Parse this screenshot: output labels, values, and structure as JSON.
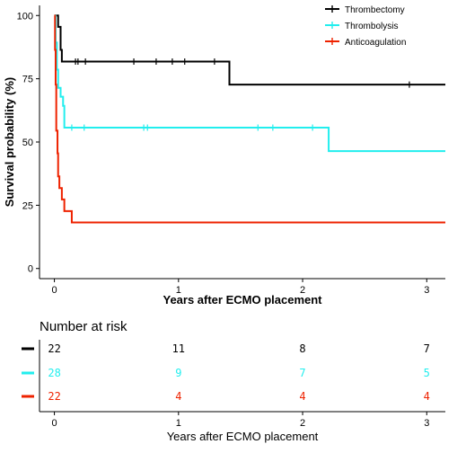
{
  "chart_data": [
    {
      "type": "line",
      "subtype": "kaplan-meier",
      "title": "",
      "xlabel": "Years after ECMO placement",
      "ylabel": "Survival probability (%)",
      "xlim": [
        -0.12,
        3.15
      ],
      "ylim": [
        -4,
        104
      ],
      "xticks": [
        0,
        1,
        2,
        3
      ],
      "yticks": [
        0,
        25,
        50,
        75,
        100
      ],
      "grid": false,
      "legend_position": "top-right",
      "series": [
        {
          "name": "Thrombectomy",
          "color": "#000000",
          "steps": [
            [
              0,
              100
            ],
            [
              0.03,
              95.5
            ],
            [
              0.05,
              86.4
            ],
            [
              0.06,
              81.8
            ],
            [
              1.41,
              81.8
            ],
            [
              1.41,
              72.7
            ],
            [
              3.15,
              72.7
            ]
          ],
          "censor_x": [
            0.17,
            0.19,
            0.25,
            0.64,
            0.82,
            0.95,
            1.05,
            1.29,
            2.86
          ],
          "censor_y": [
            81.8,
            81.8,
            81.8,
            81.8,
            81.8,
            81.8,
            81.8,
            81.8,
            72.7
          ]
        },
        {
          "name": "Thrombolysis",
          "color": "#22eeee",
          "steps": [
            [
              0,
              100
            ],
            [
              0.01,
              89.3
            ],
            [
              0.02,
              78.6
            ],
            [
              0.03,
              71.4
            ],
            [
              0.05,
              67.9
            ],
            [
              0.07,
              64.3
            ],
            [
              0.08,
              55.7
            ],
            [
              2.21,
              55.7
            ],
            [
              2.21,
              46.4
            ],
            [
              3.15,
              46.4
            ]
          ],
          "censor_x": [
            0.14,
            0.24,
            0.72,
            0.75,
            1.64,
            1.76,
            2.08
          ],
          "censor_y": [
            55.7,
            55.7,
            55.7,
            55.7,
            55.7,
            55.7,
            55.7
          ]
        },
        {
          "name": "Anticoagulation",
          "color": "#ee2200",
          "steps": [
            [
              0,
              100
            ],
            [
              0.005,
              86.4
            ],
            [
              0.01,
              72.7
            ],
            [
              0.015,
              54.5
            ],
            [
              0.025,
              45.5
            ],
            [
              0.03,
              36.4
            ],
            [
              0.04,
              31.8
            ],
            [
              0.06,
              27.3
            ],
            [
              0.08,
              22.7
            ],
            [
              0.14,
              22.7
            ],
            [
              0.14,
              18.2
            ],
            [
              3.15,
              18.2
            ]
          ],
          "censor_x": [],
          "censor_y": []
        }
      ]
    },
    {
      "type": "table",
      "title": "Number at risk",
      "xlabel": "Years after ECMO placement",
      "xticks": [
        0,
        1,
        2,
        3
      ],
      "rows": [
        {
          "name": "Thrombectomy",
          "color": "#000000",
          "values": [
            22,
            11,
            8,
            7
          ]
        },
        {
          "name": "Thrombolysis",
          "color": "#22eeee",
          "values": [
            28,
            9,
            7,
            5
          ]
        },
        {
          "name": "Anticoagulation",
          "color": "#ee2200",
          "values": [
            22,
            4,
            4,
            4
          ]
        }
      ]
    }
  ]
}
